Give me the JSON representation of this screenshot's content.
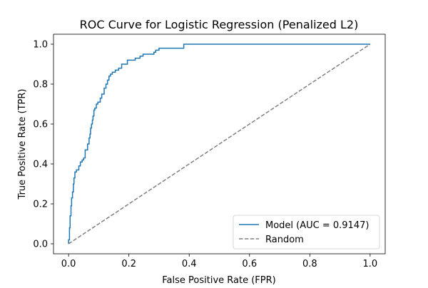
{
  "chart_data": {
    "type": "line",
    "title": "ROC Curve for  Logistic Regression (Penalized L2)",
    "xlabel": "False Positive Rate (FPR)",
    "ylabel": "True Positive Rate (TPR)",
    "xlim": [
      -0.05,
      1.05
    ],
    "ylim": [
      -0.05,
      1.05
    ],
    "xticks": [
      0.0,
      0.2,
      0.4,
      0.6,
      0.8,
      1.0
    ],
    "yticks": [
      0.0,
      0.2,
      0.4,
      0.6,
      0.8,
      1.0
    ],
    "xtick_labels": [
      "0.0",
      "0.2",
      "0.4",
      "0.6",
      "0.8",
      "1.0"
    ],
    "ytick_labels": [
      "0.0",
      "0.2",
      "0.4",
      "0.6",
      "0.8",
      "1.0"
    ],
    "grid": false,
    "legend": "lower-right",
    "series": [
      {
        "name": "Model (AUC = 0.9147)",
        "style": "solid",
        "color": "#1f77b4",
        "x": [
          0.0,
          0.0,
          0.003,
          0.003,
          0.005,
          0.005,
          0.008,
          0.008,
          0.01,
          0.01,
          0.013,
          0.013,
          0.016,
          0.016,
          0.018,
          0.018,
          0.021,
          0.021,
          0.026,
          0.026,
          0.034,
          0.034,
          0.039,
          0.039,
          0.045,
          0.045,
          0.05,
          0.05,
          0.055,
          0.055,
          0.063,
          0.063,
          0.068,
          0.068,
          0.071,
          0.071,
          0.073,
          0.073,
          0.076,
          0.076,
          0.079,
          0.079,
          0.081,
          0.081,
          0.084,
          0.084,
          0.087,
          0.087,
          0.092,
          0.092,
          0.097,
          0.097,
          0.105,
          0.105,
          0.11,
          0.11,
          0.118,
          0.118,
          0.124,
          0.124,
          0.129,
          0.129,
          0.134,
          0.134,
          0.139,
          0.139,
          0.145,
          0.145,
          0.155,
          0.155,
          0.166,
          0.166,
          0.176,
          0.176,
          0.195,
          0.195,
          0.221,
          0.221,
          0.237,
          0.237,
          0.247,
          0.247,
          0.283,
          0.283,
          0.289,
          0.289,
          0.3,
          0.3,
          0.382,
          0.382,
          1.0
        ],
        "y": [
          0.0,
          0.02,
          0.02,
          0.08,
          0.08,
          0.14,
          0.14,
          0.19,
          0.19,
          0.23,
          0.23,
          0.26,
          0.26,
          0.3,
          0.3,
          0.33,
          0.33,
          0.36,
          0.36,
          0.37,
          0.37,
          0.39,
          0.39,
          0.41,
          0.41,
          0.42,
          0.42,
          0.43,
          0.43,
          0.47,
          0.47,
          0.5,
          0.5,
          0.53,
          0.53,
          0.55,
          0.55,
          0.58,
          0.58,
          0.6,
          0.6,
          0.62,
          0.62,
          0.64,
          0.64,
          0.67,
          0.67,
          0.68,
          0.68,
          0.7,
          0.7,
          0.71,
          0.71,
          0.73,
          0.73,
          0.75,
          0.75,
          0.78,
          0.78,
          0.8,
          0.8,
          0.82,
          0.82,
          0.84,
          0.84,
          0.85,
          0.85,
          0.86,
          0.86,
          0.87,
          0.87,
          0.88,
          0.88,
          0.9,
          0.9,
          0.92,
          0.92,
          0.93,
          0.93,
          0.94,
          0.94,
          0.95,
          0.95,
          0.96,
          0.96,
          0.97,
          0.97,
          0.98,
          0.98,
          1.0,
          1.0
        ]
      },
      {
        "name": "Random",
        "style": "dashed",
        "color": "#808080",
        "x": [
          0.0,
          1.0
        ],
        "y": [
          0.0,
          1.0
        ]
      }
    ]
  }
}
